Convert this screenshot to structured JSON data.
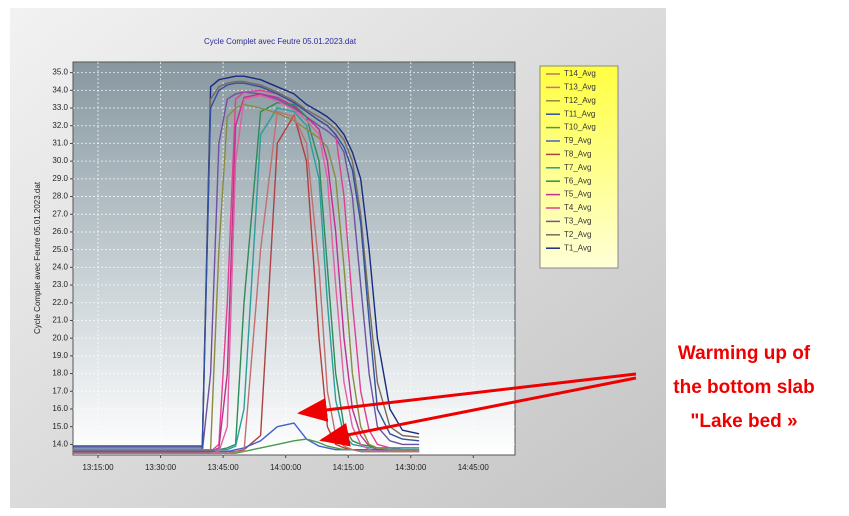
{
  "chart_data": {
    "type": "line",
    "title": "Cycle Complet avec Feutre 05.01.2023.dat",
    "ylabel": "Cycle Complet avec Feutre 05.01.2023.dat",
    "annotations": [
      "Warming up of",
      "the bottom slab",
      "\"Lake bed »"
    ],
    "x": [
      "13:09:00",
      "13:30:00",
      "13:40:00",
      "13:42:00",
      "13:44:00",
      "13:46:00",
      "13:48:00",
      "13:50:00",
      "13:54:00",
      "13:58:00",
      "14:02:00",
      "14:05:00",
      "14:08:00",
      "14:10:00",
      "14:12:00",
      "14:14:00",
      "14:16:00",
      "14:18:00",
      "14:20:00",
      "14:22:00",
      "14:25:00",
      "14:28:00",
      "14:32:00"
    ],
    "xlim": [
      "13:09:00",
      "14:55:00"
    ],
    "xticks": [
      "13:15:00",
      "13:30:00",
      "13:45:00",
      "14:00:00",
      "14:15:00",
      "14:30:00",
      "14:45:00"
    ],
    "ylim": [
      13.4,
      35.6
    ],
    "yticks": [
      {
        "value": 14,
        "label": "14.0"
      },
      {
        "value": 15,
        "label": "15.0"
      },
      {
        "value": 16,
        "label": "16.0"
      },
      {
        "value": 17,
        "label": "17.0"
      },
      {
        "value": 18,
        "label": "18.0"
      },
      {
        "value": 19,
        "label": "19.0"
      },
      {
        "value": 20,
        "label": "20.0"
      },
      {
        "value": 21,
        "label": "21.0"
      },
      {
        "value": 22,
        "label": "22.0"
      },
      {
        "value": 23,
        "label": "23.0"
      },
      {
        "value": 24,
        "label": "24.0"
      },
      {
        "value": 25,
        "label": "25.0"
      },
      {
        "value": 26,
        "label": "26.0"
      },
      {
        "value": 27,
        "label": "27.0"
      },
      {
        "value": 28,
        "label": "28.0"
      },
      {
        "value": 29,
        "label": "29.0"
      },
      {
        "value": 30,
        "label": "30.0"
      },
      {
        "value": 31,
        "label": "31.0"
      },
      {
        "value": 32,
        "label": "32.0"
      },
      {
        "value": 33,
        "label": "33.0"
      },
      {
        "value": 34,
        "label": "34.0"
      },
      {
        "value": 35,
        "label": "35.0"
      }
    ],
    "grid": true,
    "legend": "right",
    "series": [
      {
        "name": "T1_Avg",
        "color": "#1a2a80",
        "values": [
          13.9,
          13.9,
          13.9,
          34.2,
          34.6,
          34.7,
          34.8,
          34.8,
          34.6,
          34.2,
          33.8,
          33.2,
          32.8,
          32.5,
          32.1,
          31.5,
          30.5,
          29.0,
          25.0,
          20.0,
          16.0,
          14.8,
          14.6
        ]
      },
      {
        "name": "T2_Avg",
        "color": "#7a6a5a",
        "values": [
          13.7,
          13.7,
          13.7,
          33.5,
          34.2,
          34.4,
          34.5,
          34.5,
          34.3,
          33.9,
          33.4,
          32.9,
          32.5,
          32.2,
          31.8,
          31.2,
          30.0,
          27.0,
          22.0,
          17.5,
          15.0,
          14.5,
          14.4
        ]
      },
      {
        "name": "T3_Avg",
        "color": "#7050a0",
        "values": [
          13.6,
          13.6,
          13.6,
          18.0,
          31.0,
          33.5,
          33.8,
          33.9,
          33.8,
          33.5,
          33.0,
          32.5,
          32.0,
          31.7,
          31.3,
          30.5,
          28.0,
          23.0,
          18.0,
          15.0,
          14.2,
          14.0,
          14.0
        ]
      },
      {
        "name": "T4_Avg",
        "color": "#e0408f",
        "values": [
          13.6,
          13.6,
          13.6,
          13.6,
          14.0,
          22.0,
          33.5,
          33.9,
          34.0,
          33.8,
          33.3,
          32.8,
          32.3,
          32.0,
          31.5,
          28.0,
          22.0,
          17.0,
          14.8,
          14.0,
          13.8,
          13.7,
          13.7
        ]
      },
      {
        "name": "T5_Avg",
        "color": "#c03090",
        "values": [
          13.6,
          13.6,
          13.6,
          13.6,
          13.8,
          18.0,
          32.0,
          33.6,
          33.8,
          33.6,
          33.1,
          32.5,
          31.8,
          30.0,
          26.0,
          20.0,
          16.0,
          14.5,
          13.9,
          13.7,
          13.7,
          13.7,
          13.7
        ]
      },
      {
        "name": "T6_Avg",
        "color": "#2e8b57",
        "values": [
          13.7,
          13.7,
          13.7,
          13.7,
          13.7,
          13.8,
          14.0,
          22.0,
          32.8,
          33.3,
          33.2,
          32.5,
          30.0,
          24.0,
          18.0,
          15.0,
          14.2,
          14.0,
          13.9,
          13.8,
          13.8,
          13.8,
          13.8
        ]
      },
      {
        "name": "T7_Avg",
        "color": "#2a9d9d",
        "values": [
          13.7,
          13.7,
          13.7,
          13.7,
          13.7,
          13.7,
          13.9,
          16.0,
          31.5,
          33.0,
          32.8,
          32.0,
          29.0,
          22.0,
          16.5,
          14.5,
          14.0,
          13.9,
          13.8,
          13.8,
          13.8,
          13.8,
          13.8
        ]
      },
      {
        "name": "T8_Avg",
        "color": "#b04040",
        "values": [
          13.6,
          13.6,
          13.6,
          13.6,
          13.6,
          13.6,
          13.6,
          13.7,
          14.5,
          31.0,
          32.6,
          30.0,
          20.0,
          15.0,
          14.0,
          13.8,
          13.7,
          13.6,
          13.6,
          13.6,
          13.6,
          13.6,
          13.6
        ]
      },
      {
        "name": "T9_Avg",
        "color": "#4060d0",
        "values": [
          13.6,
          13.6,
          13.6,
          13.6,
          13.6,
          13.6,
          13.7,
          13.8,
          14.2,
          15.0,
          15.2,
          14.3,
          13.9,
          13.8,
          13.7,
          13.7,
          13.7,
          13.7,
          13.7,
          13.7,
          13.7,
          13.7,
          13.7
        ]
      },
      {
        "name": "T10_Avg",
        "color": "#4a9a4a",
        "values": [
          13.5,
          13.5,
          13.5,
          13.5,
          13.5,
          13.5,
          13.5,
          13.6,
          13.8,
          14.0,
          14.2,
          14.3,
          14.1,
          13.9,
          13.8,
          13.7,
          13.7,
          13.6,
          13.6,
          13.6,
          13.6,
          13.6,
          13.6
        ]
      },
      {
        "name": "T11_Avg",
        "color": "#3050a0",
        "values": [
          13.8,
          13.8,
          13.8,
          33.0,
          34.0,
          34.3,
          34.4,
          34.4,
          34.2,
          33.8,
          33.3,
          32.8,
          32.3,
          32.0,
          31.5,
          30.8,
          29.5,
          26.5,
          21.0,
          16.0,
          14.6,
          14.3,
          14.2
        ]
      },
      {
        "name": "T12_Avg",
        "color": "#8a8a40",
        "values": [
          13.7,
          13.7,
          13.7,
          13.7,
          25.0,
          32.5,
          33.0,
          33.2,
          33.0,
          32.7,
          32.3,
          31.8,
          31.3,
          30.8,
          29.0,
          24.0,
          18.0,
          15.0,
          14.0,
          13.8,
          13.7,
          13.7,
          13.7
        ]
      },
      {
        "name": "T13_Avg",
        "color": "#e060a0",
        "values": [
          13.5,
          13.5,
          13.5,
          13.5,
          13.6,
          15.0,
          30.0,
          33.5,
          33.7,
          33.4,
          32.9,
          32.3,
          31.5,
          29.0,
          23.0,
          17.5,
          15.0,
          14.0,
          13.7,
          13.6,
          13.6,
          13.6,
          13.6
        ]
      },
      {
        "name": "T14_Avg",
        "color": "#c07070",
        "values": [
          13.5,
          13.5,
          13.5,
          13.5,
          13.5,
          13.5,
          13.6,
          13.6,
          25.0,
          32.8,
          32.5,
          31.0,
          24.0,
          17.0,
          14.5,
          13.9,
          13.7,
          13.6,
          13.6,
          13.6,
          13.6,
          13.6,
          13.6
        ]
      }
    ]
  }
}
